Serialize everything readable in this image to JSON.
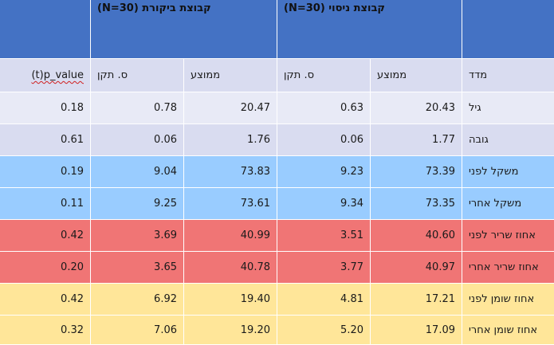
{
  "groups": {
    "control": "קבוצת ביקורת (N=30)",
    "experiment": "קבוצת ניסוי (N=30)"
  },
  "columns": {
    "pvalue": "(t)p_value",
    "control_sd": "ס. תקן",
    "control_mean": "ממוצע",
    "exp_sd": "ס. תקן",
    "exp_mean": "ממוצע",
    "measure": "מדד"
  },
  "rows": [
    {
      "measure": "גיל",
      "exp_mean": "20.43",
      "exp_sd": "0.63",
      "control_mean": "20.47",
      "control_sd": "0.78",
      "pvalue": "0.18"
    },
    {
      "measure": "גובה",
      "exp_mean": "1.77",
      "exp_sd": "0.06",
      "control_mean": "1.76",
      "control_sd": "0.06",
      "pvalue": "0.61"
    },
    {
      "measure": "משקל לפני",
      "exp_mean": "73.39",
      "exp_sd": "9.23",
      "control_mean": "73.83",
      "control_sd": "9.04",
      "pvalue": "0.19"
    },
    {
      "measure": "משקל אחרי",
      "exp_mean": "73.35",
      "exp_sd": "9.34",
      "control_mean": "73.61",
      "control_sd": "9.25",
      "pvalue": "0.11"
    },
    {
      "measure": "אחוז שריר לפני",
      "exp_mean": "40.60",
      "exp_sd": "3.51",
      "control_mean": "40.99",
      "control_sd": "3.69",
      "pvalue": "0.42"
    },
    {
      "measure": "אחוז שריר אחרי",
      "exp_mean": "40.97",
      "exp_sd": "3.77",
      "control_mean": "40.78",
      "control_sd": "3.65",
      "pvalue": "0.20"
    },
    {
      "measure": "אחוז שומן לפני",
      "exp_mean": "17.21",
      "exp_sd": "4.81",
      "control_mean": "19.40",
      "control_sd": "6.92",
      "pvalue": "0.42"
    },
    {
      "measure": "אחוז שומן אחרי",
      "exp_mean": "17.09",
      "exp_sd": "5.20",
      "control_mean": "19.20",
      "control_sd": "7.06",
      "pvalue": "0.32"
    }
  ],
  "colors": {
    "header": "#4472c4",
    "gray": "#d9dcf0",
    "blue": "#99ccff",
    "red": "#f07575",
    "yellow": "#ffe699"
  }
}
